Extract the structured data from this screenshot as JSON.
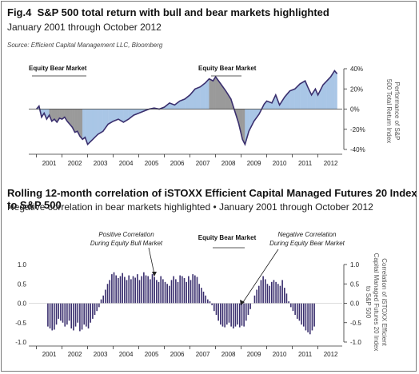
{
  "figure": {
    "fig_label": "Fig.4",
    "title": "S&P 500 total return with bull and bear markets highlighted",
    "subtitle": "January 2001 through October 2012",
    "source": "Source: Efficient Capital Management LLC, Bloomberg"
  },
  "figure2": {
    "title": "Rolling 12-month correlation of iSTOXX Efficient Capital Managed Futures 20 Index to S&P 500",
    "subtitle": "Negative correlation in bear markets highlighted • January 2001 through October 2012"
  },
  "colors": {
    "line": "#3a2f6e",
    "bull_fill": "#a9c6e6",
    "bear_fill": "#9a9a9a",
    "bars": "#3a2f6e",
    "axis": "#333333"
  },
  "chart_data": [
    {
      "type": "area",
      "ylabel": "Performance of S&P 500 Total Return Index",
      "ylim": [
        -40,
        40
      ],
      "yticks": [
        "40%",
        "20%",
        "0%",
        "-20%",
        "-40%"
      ],
      "x_labels": [
        "2001",
        "2002",
        "2003",
        "2004",
        "2005",
        "2006",
        "2007",
        "2008",
        "2009",
        "2010",
        "2011",
        "2012"
      ],
      "annotations": [
        "Equity Bear Market",
        "Equity Bear Market"
      ],
      "bear_periods": [
        [
          2001.5,
          2002.75
        ],
        [
          2007.8,
          2009.15
        ]
      ],
      "series": [
        {
          "x": [
            2001.0,
            2001.1,
            2001.2,
            2001.3,
            2001.4,
            2001.5,
            2001.6,
            2001.7,
            2001.8,
            2001.9,
            2002.0,
            2002.1,
            2002.2,
            2002.3,
            2002.4,
            2002.5,
            2002.6,
            2002.7,
            2002.8,
            2002.9,
            2003.0,
            2003.2,
            2003.4,
            2003.6,
            2003.8,
            2004.0,
            2004.2,
            2004.4,
            2004.6,
            2004.8,
            2005.0,
            2005.2,
            2005.4,
            2005.6,
            2005.8,
            2006.0,
            2006.2,
            2006.4,
            2006.6,
            2006.8,
            2007.0,
            2007.2,
            2007.4,
            2007.6,
            2007.75,
            2007.9,
            2008.0,
            2008.2,
            2008.4,
            2008.6,
            2008.75,
            2008.9,
            2009.05,
            2009.15,
            2009.3,
            2009.5,
            2009.7,
            2009.9,
            2010.0,
            2010.2,
            2010.35,
            2010.5,
            2010.7,
            2010.9,
            2011.1,
            2011.3,
            2011.5,
            2011.6,
            2011.75,
            2011.9,
            2012.0,
            2012.2,
            2012.35,
            2012.5,
            2012.65,
            2012.75
          ],
          "y": [
            0,
            3,
            -8,
            -4,
            -10,
            -6,
            -12,
            -10,
            -13,
            -9,
            -10,
            -8,
            -12,
            -15,
            -18,
            -23,
            -22,
            -27,
            -30,
            -28,
            -35,
            -30,
            -25,
            -22,
            -15,
            -12,
            -10,
            -13,
            -10,
            -6,
            -4,
            -2,
            0,
            1,
            0,
            2,
            6,
            4,
            8,
            10,
            14,
            20,
            22,
            26,
            30,
            28,
            32,
            25,
            18,
            10,
            -2,
            -14,
            -30,
            -35,
            -22,
            -12,
            -5,
            5,
            8,
            6,
            14,
            4,
            12,
            18,
            20,
            25,
            28,
            22,
            14,
            20,
            14,
            24,
            28,
            32,
            38,
            35
          ]
        }
      ]
    },
    {
      "type": "bar",
      "ylabel": "Correlation of iSTOXX Efficient Capital Managed Futures 20 Index to S&P 500",
      "ylim": [
        -1.0,
        1.0
      ],
      "yticks": [
        "1.0",
        "0.5",
        "0.0",
        "-0.5",
        "-1.0"
      ],
      "x_labels": [
        "2001",
        "2002",
        "2003",
        "2004",
        "2005",
        "2006",
        "2007",
        "2008",
        "2009",
        "2010",
        "2011",
        "2012"
      ],
      "annotations": [
        "Positive Correlation During Equity Bull Market",
        "Equity Bear Market",
        "Negative Correlation During Equity Bear Market"
      ],
      "start": 2001.45,
      "step": 0.0833,
      "values": [
        -0.6,
        -0.65,
        -0.7,
        -0.68,
        -0.55,
        -0.4,
        -0.45,
        -0.5,
        -0.6,
        -0.55,
        -0.45,
        -0.65,
        -0.7,
        -0.6,
        -0.5,
        -0.72,
        -0.68,
        -0.55,
        -0.6,
        -0.65,
        -0.5,
        -0.4,
        -0.3,
        -0.2,
        -0.1,
        0.1,
        0.2,
        0.35,
        0.5,
        0.6,
        0.75,
        0.8,
        0.72,
        0.65,
        0.7,
        0.78,
        0.68,
        0.6,
        0.72,
        0.62,
        0.7,
        0.66,
        0.75,
        0.6,
        0.7,
        0.8,
        0.72,
        0.7,
        0.62,
        0.75,
        0.68,
        0.6,
        0.55,
        0.7,
        0.62,
        0.55,
        0.5,
        0.45,
        0.6,
        0.7,
        0.62,
        0.55,
        0.72,
        0.7,
        0.65,
        0.55,
        0.7,
        0.6,
        0.75,
        0.72,
        0.68,
        0.5,
        0.4,
        0.3,
        0.2,
        0.1,
        0.05,
        -0.05,
        -0.2,
        -0.3,
        -0.45,
        -0.55,
        -0.6,
        -0.62,
        -0.55,
        -0.5,
        -0.6,
        -0.65,
        -0.6,
        -0.55,
        -0.62,
        -0.58,
        -0.6,
        -0.45,
        -0.3,
        -0.15,
        0.0,
        0.2,
        0.35,
        0.45,
        0.6,
        0.7,
        0.62,
        0.5,
        0.45,
        0.55,
        0.6,
        0.55,
        0.5,
        0.45,
        0.6,
        0.4,
        0.25,
        0.05,
        -0.1,
        -0.2,
        -0.3,
        -0.4,
        -0.45,
        -0.55,
        -0.6,
        -0.7,
        -0.75,
        -0.8,
        -0.7,
        -0.6
      ]
    }
  ]
}
